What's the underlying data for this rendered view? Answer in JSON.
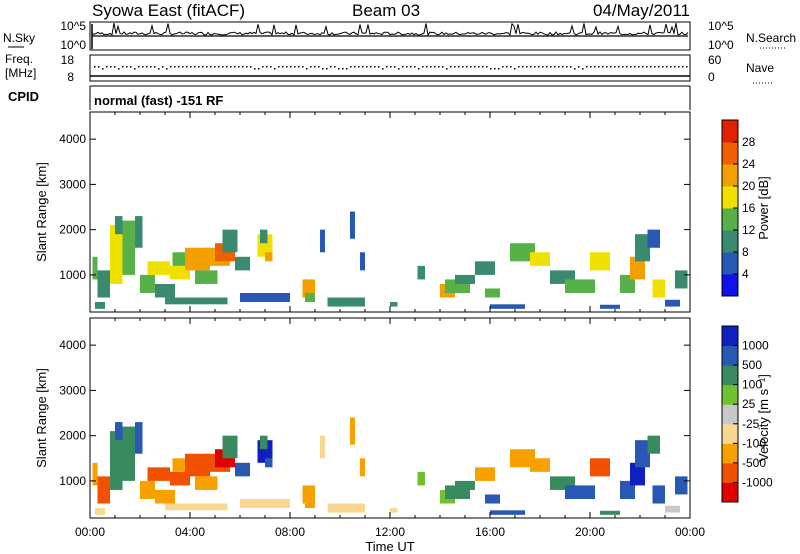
{
  "header": {
    "station": "Syowa East (fitACF)",
    "beam": "Beam 03",
    "date": "04/May/2011"
  },
  "sky_panel": {
    "left_label": "N.Sky",
    "right_label": "N.Search",
    "left_ticks": [
      "10^5",
      "10^0"
    ],
    "right_ticks": [
      "10^5",
      "10^0"
    ]
  },
  "freq_panel": {
    "left_label_1": "Freq.",
    "left_label_2": "[MHz]",
    "right_label": "Nave",
    "left_ticks": [
      "18",
      "8"
    ],
    "right_ticks": [
      "60",
      "0"
    ]
  },
  "cpid_panel": {
    "label": "CPID",
    "mode_text": "normal (fast) -151 RF"
  },
  "colors": {
    "power": [
      "#1010e8",
      "#2858b4",
      "#3a8a70",
      "#58b048",
      "#f0e000",
      "#f2a000",
      "#f06000",
      "#e02000"
    ],
    "velocity": [
      "#e00000",
      "#f05000",
      "#f8a000",
      "#f8d890",
      "#c8c8c8",
      "#70c030",
      "#3a8a60",
      "#2858b4",
      "#1020c0"
    ]
  },
  "chart_data": [
    {
      "type": "heatmap",
      "panel": "power",
      "ylabel": "Slant Range [km]",
      "xlim": [
        0,
        24
      ],
      "ylim": [
        180,
        4600
      ],
      "yticks": [
        "1000",
        "2000",
        "3000",
        "4000"
      ],
      "colorbar_label": "Power [dB]",
      "colorbar_ticks": [
        "4",
        "8",
        "12",
        "16",
        "20",
        "24",
        "28"
      ],
      "colorbar_range": [
        0,
        32
      ],
      "cells": [
        [
          0.1,
          0.3,
          900,
          1400,
          14
        ],
        [
          0.3,
          0.8,
          500,
          1100,
          10
        ],
        [
          0.8,
          1.3,
          800,
          2100,
          16
        ],
        [
          1.0,
          1.3,
          1900,
          2300,
          8
        ],
        [
          1.3,
          1.8,
          1000,
          2200,
          14
        ],
        [
          1.8,
          2.1,
          1600,
          2300,
          10
        ],
        [
          2.0,
          2.6,
          600,
          1000,
          12
        ],
        [
          2.3,
          3.2,
          1000,
          1300,
          16
        ],
        [
          2.6,
          3.4,
          500,
          800,
          9
        ],
        [
          3.2,
          4.0,
          900,
          1200,
          18
        ],
        [
          3.3,
          4.2,
          1200,
          1500,
          13
        ],
        [
          3.8,
          4.8,
          1100,
          1600,
          20
        ],
        [
          4.2,
          5.1,
          800,
          1100,
          14
        ],
        [
          4.6,
          5.6,
          1200,
          1600,
          22
        ],
        [
          5.0,
          5.8,
          1300,
          1700,
          26
        ],
        [
          5.3,
          5.9,
          1500,
          2000,
          11
        ],
        [
          5.8,
          6.4,
          1100,
          1400,
          10
        ],
        [
          6.7,
          7.3,
          1400,
          1900,
          16
        ],
        [
          7.0,
          7.3,
          1300,
          1500,
          22
        ],
        [
          6.8,
          7.1,
          1700,
          2000,
          8
        ],
        [
          8.5,
          9.0,
          500,
          900,
          20
        ],
        [
          8.6,
          9.0,
          400,
          600,
          12
        ],
        [
          9.2,
          9.4,
          1500,
          2000,
          5
        ],
        [
          10.4,
          10.6,
          1800,
          2400,
          4
        ],
        [
          10.8,
          11.0,
          1100,
          1500,
          6
        ],
        [
          12.0,
          12.3,
          300,
          400,
          10
        ],
        [
          13.1,
          13.4,
          900,
          1200,
          8
        ],
        [
          14.0,
          14.6,
          500,
          800,
          20
        ],
        [
          14.2,
          15.2,
          600,
          900,
          13
        ],
        [
          14.6,
          15.4,
          800,
          1000,
          10
        ],
        [
          15.4,
          16.2,
          1000,
          1300,
          9
        ],
        [
          15.8,
          16.4,
          500,
          700,
          14
        ],
        [
          16.0,
          17.4,
          250,
          350,
          6
        ],
        [
          16.8,
          17.8,
          1300,
          1700,
          12
        ],
        [
          17.6,
          18.4,
          1200,
          1500,
          18
        ],
        [
          18.4,
          19.4,
          800,
          1100,
          11
        ],
        [
          19.0,
          20.2,
          600,
          900,
          14
        ],
        [
          20.0,
          20.8,
          1100,
          1500,
          16
        ],
        [
          20.4,
          21.2,
          250,
          340,
          5
        ],
        [
          21.2,
          21.8,
          600,
          1000,
          13
        ],
        [
          21.6,
          22.2,
          900,
          1400,
          22
        ],
        [
          21.8,
          22.4,
          1300,
          1900,
          9
        ],
        [
          22.3,
          22.8,
          1600,
          2000,
          5
        ],
        [
          22.5,
          23.0,
          500,
          900,
          18
        ],
        [
          23.0,
          23.6,
          300,
          450,
          6
        ],
        [
          23.4,
          23.9,
          700,
          1100,
          10
        ],
        [
          0.2,
          0.6,
          250,
          400,
          8
        ],
        [
          3.0,
          5.5,
          350,
          500,
          11
        ],
        [
          6.0,
          8.0,
          400,
          600,
          6
        ],
        [
          9.5,
          11.0,
          300,
          500,
          8
        ]
      ]
    },
    {
      "type": "heatmap",
      "panel": "velocity",
      "ylabel": "Slant Range [km]",
      "xlabel": "Time UT",
      "xlim": [
        0,
        24
      ],
      "ylim": [
        180,
        4600
      ],
      "yticks": [
        "1000",
        "2000",
        "3000",
        "4000"
      ],
      "xticks": [
        "00:00",
        "04:00",
        "08:00",
        "12:00",
        "16:00",
        "20:00",
        "00:00"
      ],
      "colorbar_label": "Velocity [m s⁻¹]",
      "colorbar_ticks": [
        "1000",
        "500",
        "100",
        "25",
        "-25",
        "-100",
        "-500",
        "-1000"
      ],
      "cells": [
        [
          0.1,
          0.3,
          900,
          1400,
          2
        ],
        [
          0.3,
          0.8,
          500,
          1100,
          1
        ],
        [
          0.8,
          1.3,
          800,
          2100,
          6
        ],
        [
          1.0,
          1.3,
          1900,
          2300,
          7
        ],
        [
          1.3,
          1.8,
          1000,
          2200,
          6
        ],
        [
          1.8,
          2.1,
          1600,
          2300,
          7
        ],
        [
          2.0,
          2.6,
          600,
          1000,
          2
        ],
        [
          2.3,
          3.2,
          1000,
          1300,
          1
        ],
        [
          2.6,
          3.4,
          500,
          800,
          2
        ],
        [
          3.2,
          4.0,
          900,
          1200,
          1
        ],
        [
          3.3,
          4.2,
          1200,
          1500,
          2
        ],
        [
          3.8,
          4.8,
          1100,
          1600,
          1
        ],
        [
          4.2,
          5.1,
          800,
          1100,
          2
        ],
        [
          4.6,
          5.6,
          1200,
          1600,
          1
        ],
        [
          5.0,
          5.8,
          1300,
          1700,
          0
        ],
        [
          5.3,
          5.9,
          1500,
          2000,
          6
        ],
        [
          5.8,
          6.4,
          1100,
          1400,
          7
        ],
        [
          6.7,
          7.3,
          1400,
          1900,
          8
        ],
        [
          7.0,
          7.3,
          1300,
          1500,
          7
        ],
        [
          6.8,
          7.1,
          1700,
          2000,
          6
        ],
        [
          8.5,
          9.0,
          500,
          900,
          2
        ],
        [
          8.6,
          9.0,
          400,
          600,
          2
        ],
        [
          9.2,
          9.4,
          1500,
          2000,
          3
        ],
        [
          10.4,
          10.6,
          1800,
          2400,
          2
        ],
        [
          10.8,
          11.0,
          1100,
          1500,
          2
        ],
        [
          12.0,
          12.3,
          300,
          400,
          3
        ],
        [
          13.1,
          13.4,
          900,
          1200,
          5
        ],
        [
          14.0,
          14.6,
          500,
          800,
          5
        ],
        [
          14.2,
          15.2,
          600,
          900,
          6
        ],
        [
          14.6,
          15.4,
          800,
          1000,
          6
        ],
        [
          15.4,
          16.2,
          1000,
          1300,
          2
        ],
        [
          15.8,
          16.4,
          500,
          700,
          7
        ],
        [
          16.0,
          17.4,
          250,
          350,
          7
        ],
        [
          16.8,
          17.8,
          1300,
          1700,
          2
        ],
        [
          17.6,
          18.4,
          1200,
          1500,
          2
        ],
        [
          18.4,
          19.4,
          800,
          1100,
          6
        ],
        [
          19.0,
          20.2,
          600,
          900,
          7
        ],
        [
          20.0,
          20.8,
          1100,
          1500,
          1
        ],
        [
          20.4,
          21.2,
          250,
          340,
          6
        ],
        [
          21.2,
          21.8,
          600,
          1000,
          7
        ],
        [
          21.6,
          22.2,
          900,
          1400,
          8
        ],
        [
          21.8,
          22.4,
          1300,
          1900,
          7
        ],
        [
          22.3,
          22.8,
          1600,
          2000,
          6
        ],
        [
          22.5,
          23.0,
          500,
          900,
          7
        ],
        [
          23.0,
          23.6,
          300,
          450,
          4
        ],
        [
          23.4,
          23.9,
          700,
          1100,
          7
        ],
        [
          0.2,
          0.6,
          250,
          400,
          3
        ],
        [
          3.0,
          5.5,
          350,
          500,
          3
        ],
        [
          6.0,
          8.0,
          400,
          600,
          3
        ],
        [
          9.5,
          11.0,
          300,
          500,
          3
        ]
      ]
    }
  ]
}
